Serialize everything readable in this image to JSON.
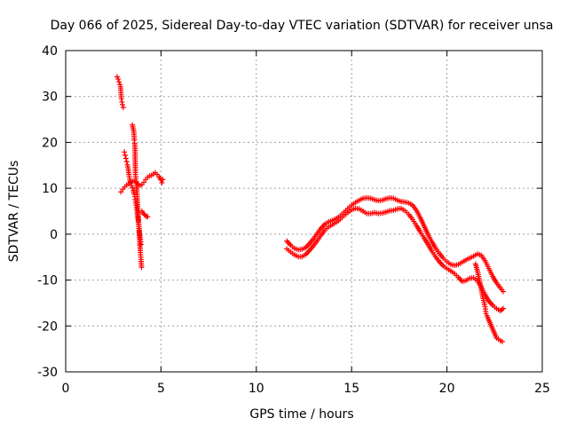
{
  "chart_data": {
    "type": "scatter",
    "title": "Day 066 of 2025, Sidereal Day-to-day VTEC variation (SDTVAR) for receiver unsa",
    "xlabel": "GPS time / hours",
    "ylabel": "SDTVAR / TECUs",
    "xlim": [
      0,
      25
    ],
    "ylim": [
      -30,
      40
    ],
    "xticks": [
      0,
      5,
      10,
      15,
      20,
      25
    ],
    "yticks": [
      -30,
      -20,
      -10,
      0,
      10,
      20,
      30,
      40
    ],
    "grid": true,
    "marker": "+",
    "color": "#ff0000",
    "series": [
      {
        "name": "segment-1-descending-a",
        "points": [
          [
            2.7,
            34.3
          ],
          [
            2.75,
            33.8
          ],
          [
            2.8,
            33.2
          ],
          [
            2.85,
            32.6
          ],
          [
            2.88,
            32.1
          ],
          [
            2.92,
            29.5
          ],
          [
            2.95,
            28.8
          ],
          [
            2.98,
            28.2
          ],
          [
            3.02,
            27.6
          ],
          [
            3.08,
            17.9
          ],
          [
            3.12,
            17.2
          ],
          [
            3.16,
            16.5
          ],
          [
            3.2,
            15.8
          ],
          [
            3.24,
            15.1
          ],
          [
            3.28,
            14.2
          ],
          [
            3.32,
            13.0
          ],
          [
            3.36,
            12.0
          ],
          [
            3.4,
            11.2
          ],
          [
            3.45,
            10.6
          ],
          [
            3.5,
            10.1
          ],
          [
            3.55,
            9.5
          ],
          [
            3.6,
            8.7
          ],
          [
            3.65,
            7.6
          ],
          [
            3.7,
            6.3
          ],
          [
            3.75,
            4.8
          ],
          [
            3.8,
            3.2
          ],
          [
            3.84,
            1.7
          ],
          [
            3.88,
            0.2
          ],
          [
            3.92,
            -1.1
          ],
          [
            3.95,
            -2.2
          ]
        ]
      },
      {
        "name": "segment-1-descending-b",
        "points": [
          [
            3.5,
            23.8
          ],
          [
            3.54,
            23.0
          ],
          [
            3.58,
            22.2
          ],
          [
            3.6,
            20.5
          ],
          [
            3.62,
            19.8
          ],
          [
            3.64,
            18.2
          ],
          [
            3.66,
            13.0
          ],
          [
            3.7,
            11.5
          ],
          [
            3.74,
            9.0
          ],
          [
            3.78,
            6.0
          ],
          [
            3.82,
            3.0
          ],
          [
            3.86,
            0.0
          ],
          [
            3.89,
            -2.0
          ],
          [
            3.92,
            -4.0
          ],
          [
            3.95,
            -5.5
          ],
          [
            3.98,
            -7.2
          ]
        ]
      },
      {
        "name": "segment-1-rising",
        "points": [
          [
            2.9,
            9.2
          ],
          [
            3.0,
            9.8
          ],
          [
            3.1,
            10.3
          ],
          [
            3.2,
            10.7
          ],
          [
            3.3,
            11.0
          ],
          [
            3.4,
            11.3
          ],
          [
            3.5,
            11.5
          ],
          [
            3.6,
            11.6
          ],
          [
            3.7,
            11.3
          ],
          [
            3.8,
            10.9
          ],
          [
            3.9,
            10.6
          ],
          [
            4.0,
            10.8
          ],
          [
            4.1,
            11.3
          ],
          [
            4.2,
            11.9
          ],
          [
            4.3,
            12.4
          ],
          [
            4.4,
            12.7
          ],
          [
            4.5,
            12.8
          ],
          [
            4.6,
            13.1
          ],
          [
            4.7,
            13.4
          ],
          [
            4.8,
            13.0
          ],
          [
            4.9,
            12.5
          ],
          [
            5.0,
            11.8
          ],
          [
            5.05,
            11.2
          ],
          [
            5.1,
            11.9
          ]
        ]
      },
      {
        "name": "segment-1-cluster",
        "points": [
          [
            4.0,
            5.0
          ],
          [
            4.06,
            4.6
          ],
          [
            4.12,
            4.3
          ],
          [
            4.18,
            4.1
          ],
          [
            4.24,
            3.9
          ],
          [
            4.3,
            3.8
          ]
        ]
      },
      {
        "name": "segment-2-upper",
        "points": [
          [
            11.6,
            -1.5
          ],
          [
            11.8,
            -2.4
          ],
          [
            12.0,
            -3.1
          ],
          [
            12.2,
            -3.4
          ],
          [
            12.4,
            -3.3
          ],
          [
            12.6,
            -2.9
          ],
          [
            12.8,
            -2.0
          ],
          [
            13.0,
            -1.0
          ],
          [
            13.2,
            0.2
          ],
          [
            13.4,
            1.3
          ],
          [
            13.6,
            2.2
          ],
          [
            13.8,
            2.7
          ],
          [
            14.0,
            3.0
          ],
          [
            14.2,
            3.4
          ],
          [
            14.4,
            4.0
          ],
          [
            14.6,
            4.8
          ],
          [
            14.8,
            5.6
          ],
          [
            15.0,
            6.3
          ],
          [
            15.2,
            6.9
          ],
          [
            15.4,
            7.4
          ],
          [
            15.6,
            7.8
          ],
          [
            15.8,
            7.9
          ],
          [
            16.0,
            7.8
          ],
          [
            16.2,
            7.5
          ],
          [
            16.4,
            7.3
          ],
          [
            16.6,
            7.4
          ],
          [
            16.8,
            7.7
          ],
          [
            17.0,
            7.9
          ],
          [
            17.2,
            7.8
          ],
          [
            17.4,
            7.4
          ],
          [
            17.6,
            7.1
          ],
          [
            17.8,
            7.0
          ],
          [
            18.0,
            6.8
          ],
          [
            18.2,
            6.3
          ],
          [
            18.4,
            5.2
          ],
          [
            18.6,
            3.6
          ],
          [
            18.8,
            1.8
          ],
          [
            19.0,
            0.0
          ],
          [
            19.2,
            -1.6
          ],
          [
            19.4,
            -3.0
          ],
          [
            19.6,
            -4.2
          ],
          [
            19.8,
            -5.2
          ],
          [
            20.0,
            -6.0
          ],
          [
            20.2,
            -6.6
          ],
          [
            20.4,
            -6.8
          ],
          [
            20.6,
            -6.6
          ],
          [
            20.8,
            -6.1
          ],
          [
            21.0,
            -5.6
          ],
          [
            21.2,
            -5.2
          ],
          [
            21.4,
            -4.8
          ],
          [
            21.6,
            -4.3
          ],
          [
            21.8,
            -4.6
          ],
          [
            22.0,
            -5.8
          ],
          [
            22.2,
            -7.5
          ],
          [
            22.4,
            -9.2
          ],
          [
            22.6,
            -10.6
          ],
          [
            22.8,
            -11.7
          ],
          [
            22.95,
            -12.5
          ]
        ]
      },
      {
        "name": "segment-2-lower",
        "points": [
          [
            11.6,
            -3.2
          ],
          [
            11.8,
            -3.9
          ],
          [
            12.0,
            -4.5
          ],
          [
            12.2,
            -4.9
          ],
          [
            12.4,
            -4.9
          ],
          [
            12.6,
            -4.4
          ],
          [
            12.8,
            -3.5
          ],
          [
            13.0,
            -2.5
          ],
          [
            13.2,
            -1.4
          ],
          [
            13.4,
            -0.2
          ],
          [
            13.6,
            0.9
          ],
          [
            13.8,
            1.6
          ],
          [
            14.0,
            2.1
          ],
          [
            14.2,
            2.6
          ],
          [
            14.4,
            3.2
          ],
          [
            14.6,
            4.0
          ],
          [
            14.8,
            4.7
          ],
          [
            15.0,
            5.3
          ],
          [
            15.2,
            5.6
          ],
          [
            15.4,
            5.5
          ],
          [
            15.6,
            5.0
          ],
          [
            15.8,
            4.5
          ],
          [
            16.0,
            4.5
          ],
          [
            16.2,
            4.7
          ],
          [
            16.4,
            4.5
          ],
          [
            16.6,
            4.6
          ],
          [
            16.8,
            4.8
          ],
          [
            17.0,
            5.1
          ],
          [
            17.2,
            5.2
          ],
          [
            17.4,
            5.5
          ],
          [
            17.6,
            5.6
          ],
          [
            17.8,
            5.1
          ],
          [
            18.0,
            4.3
          ],
          [
            18.2,
            3.2
          ],
          [
            18.4,
            1.9
          ],
          [
            18.6,
            0.5
          ],
          [
            18.8,
            -0.8
          ],
          [
            19.0,
            -2.2
          ],
          [
            19.2,
            -3.6
          ],
          [
            19.4,
            -4.9
          ],
          [
            19.6,
            -6.0
          ],
          [
            19.8,
            -6.9
          ],
          [
            20.0,
            -7.5
          ],
          [
            20.2,
            -8.0
          ],
          [
            20.4,
            -8.6
          ],
          [
            20.6,
            -9.4
          ],
          [
            20.8,
            -10.3
          ],
          [
            21.0,
            -10.1
          ],
          [
            21.2,
            -9.6
          ],
          [
            21.4,
            -9.5
          ],
          [
            21.6,
            -10.2
          ],
          [
            21.8,
            -11.5
          ],
          [
            22.0,
            -13.2
          ],
          [
            22.2,
            -14.6
          ],
          [
            22.4,
            -15.5
          ],
          [
            22.6,
            -16.2
          ],
          [
            22.8,
            -16.7
          ],
          [
            22.95,
            -16.2
          ]
        ]
      },
      {
        "name": "segment-2-spur",
        "points": [
          [
            21.5,
            -6.5
          ],
          [
            21.6,
            -8.0
          ],
          [
            21.7,
            -10.0
          ],
          [
            21.8,
            -12.0
          ],
          [
            21.9,
            -14.0
          ],
          [
            22.0,
            -15.8
          ],
          [
            22.05,
            -17.3
          ],
          [
            22.1,
            -17.8
          ],
          [
            22.6,
            -22.6
          ],
          [
            22.7,
            -22.9
          ],
          [
            22.8,
            -23.2
          ],
          [
            22.9,
            -23.4
          ]
        ]
      }
    ]
  }
}
